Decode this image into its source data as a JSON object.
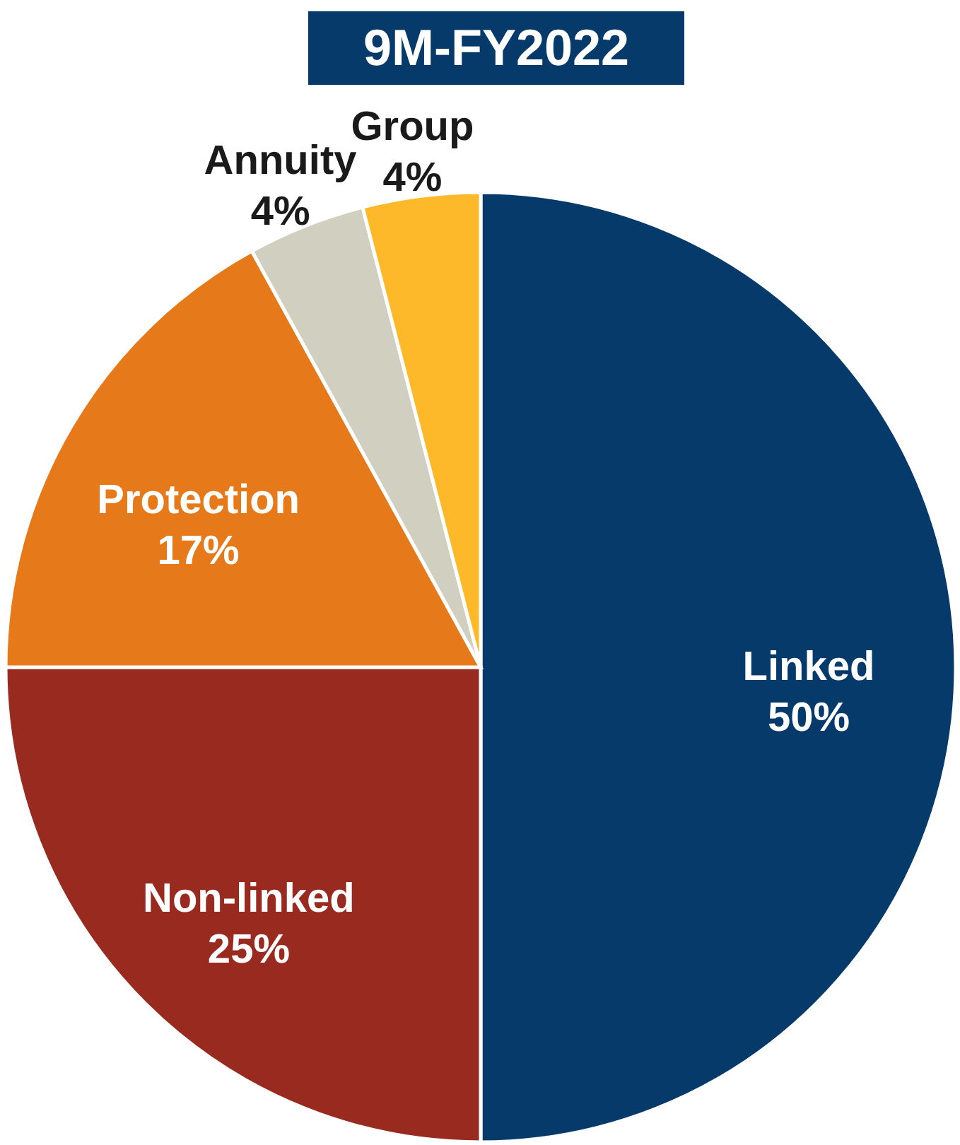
{
  "chart_data": {
    "type": "pie",
    "title": "9M-FY2022",
    "categories": [
      "Linked",
      "Non-linked",
      "Protection",
      "Annuity",
      "Group"
    ],
    "values": [
      50,
      25,
      17,
      4,
      4
    ],
    "colors": [
      "#063a6b",
      "#982a1f",
      "#e67a1a",
      "#d1cfbf",
      "#fdb92a"
    ],
    "value_labels": [
      "50%",
      "25%",
      "17%",
      "4%",
      "4%"
    ]
  }
}
